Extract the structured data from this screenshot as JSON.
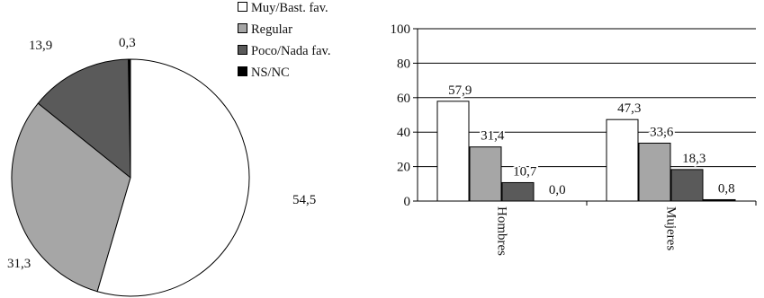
{
  "colors": {
    "favorable": "#ffffff",
    "regular": "#a6a6a6",
    "poco": "#5a5a5a",
    "nsnc": "#000000",
    "outline": "#000000"
  },
  "chart_data": [
    {
      "type": "pie",
      "title": "",
      "labels": [
        "Muy/Bast. fav.",
        "Regular",
        "Poco/Nada fav.",
        "NS/NC"
      ],
      "values": [
        54.5,
        31.3,
        13.9,
        0.3
      ],
      "value_labels": [
        "54,5",
        "31,3",
        "13,9",
        "0,3"
      ],
      "start": "top, clockwise from NS/NC",
      "legend": {
        "position": "top-right of pie",
        "entries": [
          "Muy/Bast. fav.",
          "Regular",
          "Poco/Nada fav.",
          "NS/NC"
        ]
      }
    },
    {
      "type": "bar",
      "title": "",
      "xlabel": "",
      "ylabel": "",
      "categories": [
        "Hombres",
        "Mujeres"
      ],
      "series": [
        {
          "name": "Muy/Bast. fav.",
          "values": [
            57.9,
            47.3
          ],
          "labels": [
            "57,9",
            "47,3"
          ]
        },
        {
          "name": "Regular",
          "values": [
            31.4,
            33.6
          ],
          "labels": [
            "31,4",
            "33,6"
          ]
        },
        {
          "name": "Poco/Nada fav.",
          "values": [
            10.7,
            18.3
          ],
          "labels": [
            "10,7",
            "18,3"
          ]
        },
        {
          "name": "NS/NC",
          "values": [
            0.0,
            0.8
          ],
          "labels": [
            "0,0",
            "0,8"
          ]
        }
      ],
      "ylim": [
        0,
        100
      ],
      "yticks": [
        "0",
        "20",
        "40",
        "60",
        "80",
        "100"
      ],
      "grid": "horizontal",
      "category_label_orientation": "vertical"
    }
  ]
}
